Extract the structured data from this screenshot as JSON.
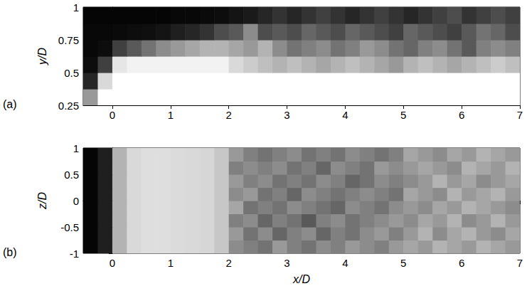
{
  "chart_data": [
    {
      "type": "heatmap",
      "panel_label": "(a)",
      "ylabel": "y/D",
      "xlim": [
        -0.5,
        7
      ],
      "ylim": [
        0.25,
        1
      ],
      "xticks": [
        0,
        1,
        2,
        3,
        4,
        5,
        6,
        7
      ],
      "yticks": [
        0.25,
        0.5,
        0.75,
        1
      ],
      "grid": false,
      "x_bins": [
        -0.5,
        -0.25,
        0,
        0.25,
        0.5,
        0.75,
        1,
        1.25,
        1.5,
        1.75,
        2,
        2.25,
        2.5,
        2.75,
        3,
        3.25,
        3.5,
        3.75,
        4,
        4.25,
        4.5,
        4.75,
        5,
        5.25,
        5.5,
        5.75,
        6,
        6.25,
        6.5,
        6.75,
        7
      ],
      "y_bins": [
        0.25,
        0.375,
        0.5,
        0.625,
        0.75,
        0.875,
        1
      ],
      "values": [
        [
          0.6,
          1,
          1,
          1,
          1,
          1,
          1,
          1,
          1,
          1,
          1,
          1,
          1,
          1,
          1,
          1,
          1,
          1,
          1,
          1,
          1,
          1,
          1,
          1,
          1,
          1,
          1,
          1,
          1,
          1
        ],
        [
          0.15,
          0.85,
          1,
          1,
          1,
          1,
          1,
          1,
          1,
          1,
          1,
          1,
          1,
          1,
          1,
          1,
          1,
          1,
          1,
          1,
          1,
          1,
          1,
          1,
          1,
          1,
          1,
          1,
          1,
          1
        ],
        [
          0.05,
          0.25,
          0.9,
          0.95,
          0.95,
          0.95,
          0.95,
          0.95,
          0.95,
          0.95,
          0.85,
          0.8,
          0.75,
          0.7,
          0.75,
          0.7,
          0.65,
          0.7,
          0.75,
          0.7,
          0.65,
          0.6,
          0.7,
          0.75,
          0.7,
          0.65,
          0.7,
          0.75,
          0.8,
          0.75
        ],
        [
          0.03,
          0.05,
          0.25,
          0.35,
          0.45,
          0.55,
          0.6,
          0.65,
          0.7,
          0.7,
          0.65,
          0.6,
          0.7,
          0.55,
          0.45,
          0.5,
          0.55,
          0.45,
          0.5,
          0.6,
          0.55,
          0.45,
          0.4,
          0.5,
          0.55,
          0.45,
          0.35,
          0.5,
          0.55,
          0.5
        ],
        [
          0.03,
          0.03,
          0.04,
          0.05,
          0.06,
          0.08,
          0.12,
          0.15,
          0.2,
          0.3,
          0.35,
          0.55,
          0.3,
          0.35,
          0.3,
          0.4,
          0.35,
          0.3,
          0.4,
          0.35,
          0.3,
          0.25,
          0.4,
          0.35,
          0.3,
          0.25,
          0.35,
          0.45,
          0.4,
          0.3
        ],
        [
          0.02,
          0.02,
          0.02,
          0.02,
          0.02,
          0.02,
          0.03,
          0.03,
          0.04,
          0.05,
          0.08,
          0.1,
          0.15,
          0.2,
          0.15,
          0.2,
          0.25,
          0.2,
          0.15,
          0.2,
          0.25,
          0.2,
          0.15,
          0.2,
          0.25,
          0.3,
          0.2,
          0.25,
          0.3,
          0.25
        ]
      ]
    },
    {
      "type": "heatmap",
      "panel_label": "(b)",
      "xlabel": "x/D",
      "ylabel": "z/D",
      "xlim": [
        -0.5,
        7
      ],
      "ylim": [
        -1,
        1
      ],
      "xticks": [
        0,
        1,
        2,
        3,
        4,
        5,
        6,
        7
      ],
      "yticks": [
        -1,
        -0.5,
        0,
        0.5,
        1
      ],
      "grid": false,
      "x_bins": [
        -0.5,
        -0.25,
        0,
        0.25,
        0.5,
        0.75,
        1,
        1.25,
        1.5,
        1.75,
        2,
        2.25,
        2.5,
        2.75,
        3,
        3.25,
        3.5,
        3.75,
        4,
        4.25,
        4.5,
        4.75,
        5,
        5.25,
        5.5,
        5.75,
        6,
        6.25,
        6.5,
        6.75,
        7
      ],
      "y_bins": [
        -1,
        -0.75,
        -0.5,
        -0.25,
        0,
        0.25,
        0.5,
        0.75,
        1
      ],
      "values": [
        [
          0.02,
          0.12,
          0.7,
          0.85,
          0.87,
          0.87,
          0.86,
          0.85,
          0.84,
          0.78,
          0.55,
          0.5,
          0.45,
          0.6,
          0.5,
          0.45,
          0.55,
          0.5,
          0.6,
          0.55,
          0.5,
          0.6,
          0.65,
          0.6,
          0.7,
          0.65,
          0.6,
          0.7,
          0.65,
          0.6
        ],
        [
          0.02,
          0.12,
          0.7,
          0.85,
          0.87,
          0.87,
          0.86,
          0.85,
          0.84,
          0.78,
          0.6,
          0.45,
          0.55,
          0.4,
          0.5,
          0.55,
          0.4,
          0.5,
          0.45,
          0.55,
          0.6,
          0.5,
          0.6,
          0.7,
          0.55,
          0.65,
          0.7,
          0.6,
          0.55,
          0.65
        ],
        [
          0.02,
          0.12,
          0.7,
          0.85,
          0.87,
          0.87,
          0.86,
          0.85,
          0.84,
          0.78,
          0.5,
          0.55,
          0.4,
          0.5,
          0.45,
          0.35,
          0.5,
          0.55,
          0.45,
          0.5,
          0.55,
          0.6,
          0.55,
          0.65,
          0.6,
          0.7,
          0.55,
          0.6,
          0.7,
          0.6
        ],
        [
          0.02,
          0.12,
          0.7,
          0.85,
          0.87,
          0.87,
          0.86,
          0.85,
          0.84,
          0.78,
          0.65,
          0.45,
          0.5,
          0.45,
          0.55,
          0.5,
          0.45,
          0.4,
          0.55,
          0.5,
          0.45,
          0.55,
          0.6,
          0.55,
          0.65,
          0.6,
          0.7,
          0.65,
          0.6,
          0.55
        ],
        [
          0.02,
          0.12,
          0.7,
          0.85,
          0.87,
          0.87,
          0.86,
          0.85,
          0.84,
          0.78,
          0.55,
          0.6,
          0.45,
          0.5,
          0.4,
          0.55,
          0.5,
          0.45,
          0.5,
          0.55,
          0.5,
          0.45,
          0.65,
          0.6,
          0.55,
          0.7,
          0.6,
          0.65,
          0.7,
          0.6
        ],
        [
          0.02,
          0.12,
          0.7,
          0.85,
          0.87,
          0.87,
          0.86,
          0.85,
          0.84,
          0.78,
          0.6,
          0.5,
          0.55,
          0.45,
          0.5,
          0.45,
          0.55,
          0.5,
          0.4,
          0.45,
          0.55,
          0.5,
          0.55,
          0.6,
          0.7,
          0.6,
          0.65,
          0.55,
          0.6,
          0.65
        ],
        [
          0.02,
          0.12,
          0.7,
          0.85,
          0.87,
          0.87,
          0.86,
          0.85,
          0.84,
          0.78,
          0.5,
          0.55,
          0.5,
          0.55,
          0.45,
          0.5,
          0.4,
          0.55,
          0.5,
          0.45,
          0.6,
          0.55,
          0.6,
          0.65,
          0.6,
          0.55,
          0.7,
          0.65,
          0.6,
          0.7
        ],
        [
          0.02,
          0.12,
          0.7,
          0.85,
          0.87,
          0.87,
          0.86,
          0.85,
          0.84,
          0.78,
          0.6,
          0.5,
          0.45,
          0.5,
          0.55,
          0.45,
          0.5,
          0.45,
          0.55,
          0.5,
          0.45,
          0.5,
          0.65,
          0.6,
          0.55,
          0.65,
          0.6,
          0.7,
          0.65,
          0.6
        ]
      ]
    }
  ]
}
